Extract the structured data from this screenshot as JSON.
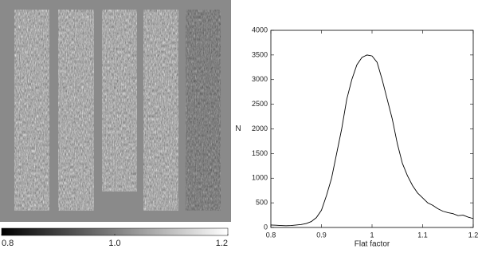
{
  "chart_data": [
    {
      "type": "image",
      "clim": [
        0.8,
        1.2
      ],
      "cticks": [
        0.8,
        {
          "value": 1.0,
          "label": "1.0"
        },
        1.2
      ]
    },
    {
      "type": "line",
      "xlabel": "Flat factor",
      "ylabel": "N",
      "color": "#000000",
      "x": [
        0.8,
        0.81,
        0.82,
        0.83,
        0.84,
        0.85,
        0.86,
        0.87,
        0.88,
        0.89,
        0.9,
        0.91,
        0.92,
        0.93,
        0.94,
        0.95,
        0.96,
        0.97,
        0.98,
        0.99,
        1.0,
        1.01,
        1.02,
        1.03,
        1.04,
        1.05,
        1.06,
        1.07,
        1.08,
        1.09,
        1.1,
        1.11,
        1.12,
        1.13,
        1.14,
        1.15,
        1.16,
        1.17,
        1.18,
        1.19,
        1.2
      ],
      "values": [
        50,
        45,
        40,
        35,
        40,
        50,
        60,
        80,
        120,
        200,
        350,
        650,
        1000,
        1500,
        2000,
        2600,
        3000,
        3300,
        3450,
        3500,
        3480,
        3350,
        3000,
        2600,
        2200,
        1700,
        1300,
        1050,
        850,
        700,
        600,
        500,
        450,
        380,
        330,
        300,
        280,
        240,
        250,
        210,
        180
      ],
      "xlim": [
        0.8,
        1.2
      ],
      "xticks": [
        0.8,
        0.9,
        1,
        1.1,
        1.2
      ],
      "ylim": [
        0,
        4000
      ],
      "yticks": [
        0,
        500,
        1000,
        1500,
        2000,
        2500,
        3000,
        3500,
        4000
      ]
    }
  ]
}
